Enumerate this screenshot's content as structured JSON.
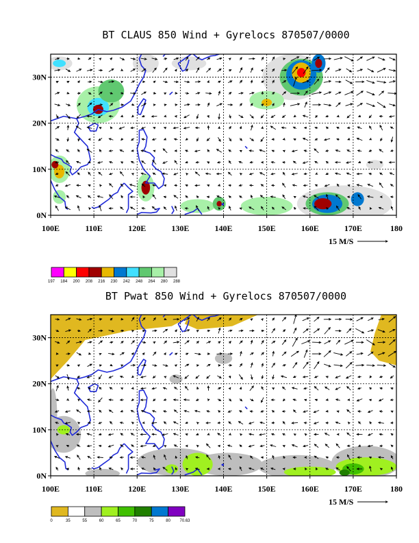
{
  "colors": {
    "coast": "#1f2ad8",
    "claus_palette": [
      "#ff00ff",
      "#ffff00",
      "#ff0000",
      "#a00000",
      "#e8b800",
      "#0078d0",
      "#40e0ff",
      "#60c870",
      "#a8f0a8",
      "#e0e0e0"
    ],
    "pwat_palette": [
      "#e0b820",
      "#ffffff",
      "#bebebe",
      "#a0f020",
      "#40c000",
      "#208000",
      "#0078d0",
      "#8000c0"
    ]
  },
  "chart_data": [
    {
      "type": "heatmap",
      "title": "BT CLAUS 850 Wind + Gyrelocs 870507/0000",
      "x_ticks": [
        "100E",
        "110E",
        "120E",
        "130E",
        "140E",
        "150E",
        "160E",
        "170E",
        "180"
      ],
      "y_ticks": [
        "0N",
        "10N",
        "20N",
        "30N"
      ],
      "xlim": [
        100,
        180
      ],
      "ylim": [
        0,
        35
      ],
      "grid": true,
      "vector_reference": "15 M/S",
      "colorbar_labels": [
        "197",
        "184",
        "200",
        "208",
        "216",
        "230",
        "242",
        "248",
        "264",
        "280",
        "288"
      ],
      "regions": [
        {
          "level": 9,
          "lon": 156,
          "lat": 30,
          "rx": 7,
          "ry": 5
        },
        {
          "level": 7,
          "lon": 158,
          "lat": 30,
          "rx": 5,
          "ry": 4
        },
        {
          "level": 5,
          "lon": 158,
          "lat": 30.5,
          "rx": 3.5,
          "ry": 3.2
        },
        {
          "level": 4,
          "lon": 158,
          "lat": 31,
          "rx": 2.2,
          "ry": 2.2
        },
        {
          "level": 2,
          "lon": 158,
          "lat": 31,
          "rx": 1,
          "ry": 1
        },
        {
          "level": 5,
          "lon": 162,
          "lat": 33,
          "rx": 1.6,
          "ry": 2
        },
        {
          "level": 3,
          "lon": 162,
          "lat": 33,
          "rx": 0.8,
          "ry": 1
        },
        {
          "level": 8,
          "lon": 150,
          "lat": 25,
          "rx": 4,
          "ry": 2
        },
        {
          "level": 4,
          "lon": 150,
          "lat": 24.5,
          "rx": 1.2,
          "ry": 0.8
        },
        {
          "level": 8,
          "lon": 111,
          "lat": 24,
          "rx": 5,
          "ry": 4
        },
        {
          "level": 6,
          "lon": 111,
          "lat": 23.5,
          "rx": 2.5,
          "ry": 2
        },
        {
          "level": 3,
          "lon": 111,
          "lat": 23,
          "rx": 1.2,
          "ry": 1
        },
        {
          "level": 7,
          "lon": 114,
          "lat": 27,
          "rx": 3,
          "ry": 2.5
        },
        {
          "level": 9,
          "lon": 102,
          "lat": 33,
          "rx": 3,
          "ry": 1.5
        },
        {
          "level": 6,
          "lon": 102,
          "lat": 33,
          "rx": 1.5,
          "ry": 0.8
        },
        {
          "level": 9,
          "lon": 122,
          "lat": 33,
          "rx": 3,
          "ry": 2
        },
        {
          "level": 9,
          "lon": 132,
          "lat": 33,
          "rx": 4,
          "ry": 1.5
        },
        {
          "level": 8,
          "lon": 102,
          "lat": 10,
          "rx": 2.5,
          "ry": 3
        },
        {
          "level": 4,
          "lon": 102,
          "lat": 9.5,
          "rx": 1.2,
          "ry": 1.5
        },
        {
          "level": 3,
          "lon": 101,
          "lat": 11,
          "rx": 0.8,
          "ry": 0.8
        },
        {
          "level": 8,
          "lon": 102,
          "lat": 4,
          "rx": 1.5,
          "ry": 1.5
        },
        {
          "level": 8,
          "lon": 122,
          "lat": 6,
          "rx": 2,
          "ry": 3
        },
        {
          "level": 3,
          "lon": 122,
          "lat": 6,
          "rx": 1,
          "ry": 1.5
        },
        {
          "level": 8,
          "lon": 134,
          "lat": 2,
          "rx": 4,
          "ry": 1.5
        },
        {
          "level": 7,
          "lon": 139,
          "lat": 2.5,
          "rx": 1.5,
          "ry": 1.5
        },
        {
          "level": 3,
          "lon": 139,
          "lat": 2.5,
          "rx": 0.6,
          "ry": 0.6
        },
        {
          "level": 8,
          "lon": 150,
          "lat": 2,
          "rx": 6,
          "ry": 2
        },
        {
          "level": 9,
          "lon": 168,
          "lat": 2.5,
          "rx": 11,
          "ry": 4
        },
        {
          "level": 7,
          "lon": 164,
          "lat": 2.5,
          "rx": 5,
          "ry": 2.5
        },
        {
          "level": 5,
          "lon": 164,
          "lat": 2.5,
          "rx": 3.5,
          "ry": 2
        },
        {
          "level": 3,
          "lon": 163,
          "lat": 2.5,
          "rx": 2,
          "ry": 1.2
        },
        {
          "level": 5,
          "lon": 171,
          "lat": 3.5,
          "rx": 1.5,
          "ry": 1.5
        },
        {
          "level": 9,
          "lon": 175,
          "lat": 11,
          "rx": 2,
          "ry": 1
        }
      ]
    },
    {
      "type": "heatmap",
      "title": "BT Pwat 850 Wind + Gyrelocs 870507/0000",
      "x_ticks": [
        "100E",
        "110E",
        "120E",
        "130E",
        "140E",
        "150E",
        "160E",
        "170E",
        "180"
      ],
      "y_ticks": [
        "0N",
        "10N",
        "20N",
        "30N"
      ],
      "xlim": [
        100,
        180
      ],
      "ylim": [
        0,
        35
      ],
      "grid": true,
      "vector_reference": "15 M/S",
      "colorbar_labels": [
        "0",
        "35",
        "55",
        "60",
        "65",
        "70",
        "75",
        "80",
        "70.63"
      ],
      "regions": [
        {
          "level": 2,
          "lon": 103,
          "lat": 9,
          "rx": 4,
          "ry": 4
        },
        {
          "level": 2,
          "lon": 100.5,
          "lat": 13,
          "rx": 1,
          "ry": 6
        },
        {
          "level": 2,
          "lon": 112,
          "lat": 0.5,
          "rx": 4,
          "ry": 1
        },
        {
          "level": 2,
          "lon": 129,
          "lat": 3,
          "rx": 9,
          "ry": 3
        },
        {
          "level": 2,
          "lon": 141,
          "lat": 2.5,
          "rx": 8,
          "ry": 2.5
        },
        {
          "level": 2,
          "lon": 157,
          "lat": 2,
          "rx": 9,
          "ry": 2.5
        },
        {
          "level": 2,
          "lon": 173,
          "lat": 3,
          "rx": 8,
          "ry": 3.5
        },
        {
          "level": 2,
          "lon": 129,
          "lat": 21,
          "rx": 1.5,
          "ry": 1
        },
        {
          "level": 2,
          "lon": 140,
          "lat": 25.5,
          "rx": 2,
          "ry": 1.2
        },
        {
          "level": 3,
          "lon": 134,
          "lat": 2.5,
          "rx": 3.5,
          "ry": 2.5
        },
        {
          "level": 3,
          "lon": 128,
          "lat": 1.5,
          "rx": 1.5,
          "ry": 1
        },
        {
          "level": 3,
          "lon": 160,
          "lat": 0.8,
          "rx": 6,
          "ry": 1.2
        },
        {
          "level": 3,
          "lon": 173,
          "lat": 2,
          "rx": 7,
          "ry": 2
        },
        {
          "level": 3,
          "lon": 103,
          "lat": 10,
          "rx": 1.5,
          "ry": 1
        },
        {
          "level": 4,
          "lon": 170,
          "lat": 1.5,
          "rx": 2.5,
          "ry": 1.2
        },
        {
          "level": 5,
          "lon": 168,
          "lat": 0.7,
          "rx": 1.2,
          "ry": 0.7
        }
      ]
    }
  ]
}
